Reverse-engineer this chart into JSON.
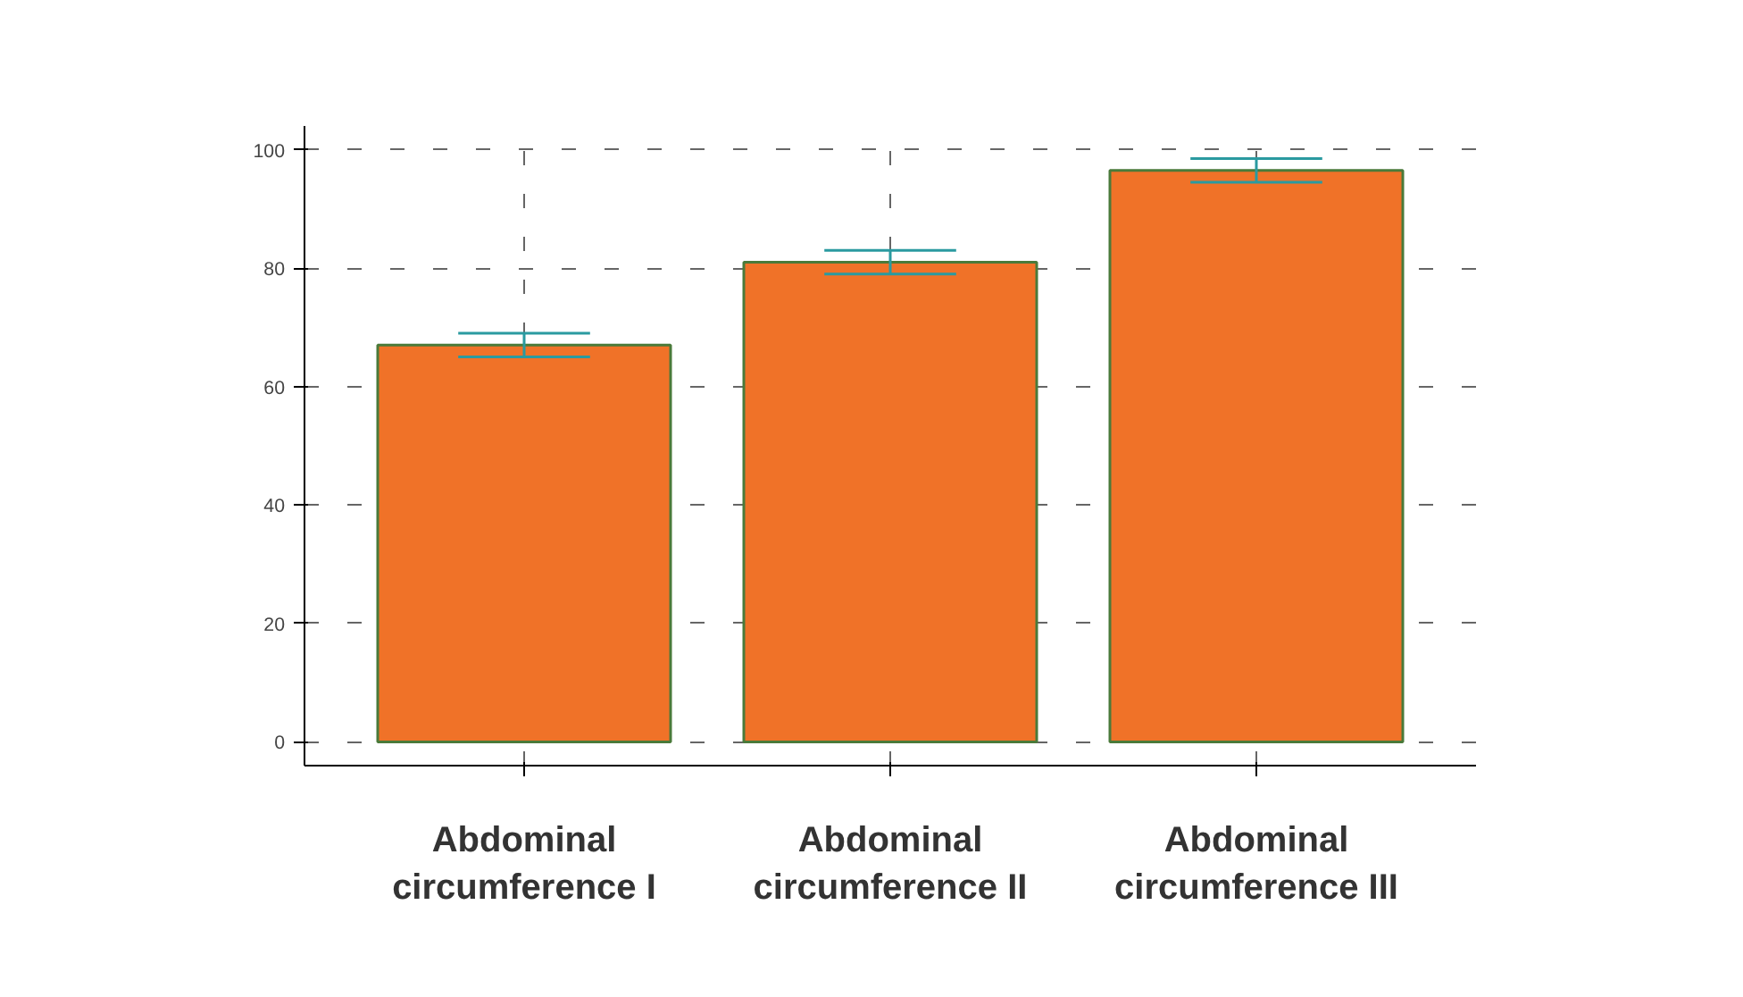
{
  "chart_data": {
    "type": "bar",
    "categories": [
      "Abdominal circumference I",
      "Abdominal circumference II",
      "Abdominal circumference III"
    ],
    "values": [
      67,
      81,
      96.5
    ],
    "errors": [
      2,
      2,
      2
    ],
    "color": "#f07228",
    "ylim": [
      -4,
      104
    ],
    "yticks": [
      0,
      20,
      40,
      60,
      80,
      100
    ],
    "grid": true
  }
}
